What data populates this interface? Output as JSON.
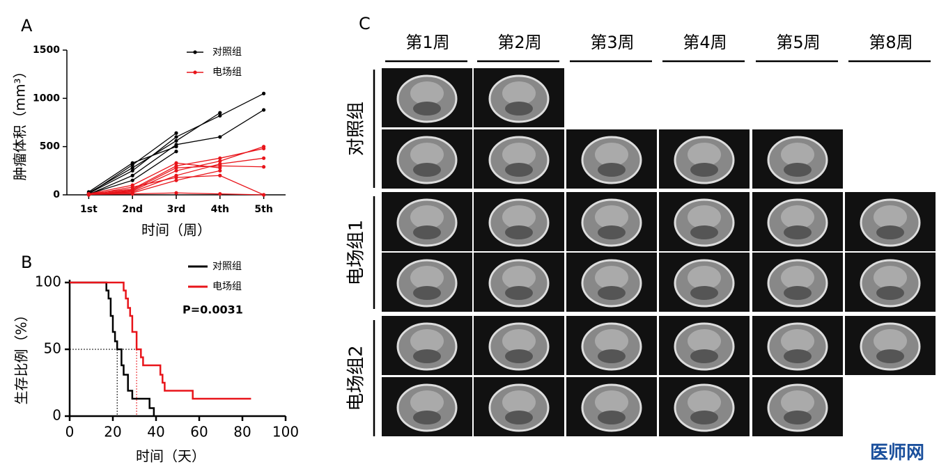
{
  "chart_data": [
    {
      "type": "line",
      "panel": "A",
      "y_label": "肿瘤体积（mm³）",
      "x_label": "时间（周）",
      "categories": [
        "1st",
        "2nd",
        "3rd",
        "4th",
        "5th"
      ],
      "ylim": [
        0,
        1500
      ],
      "yticks": [
        0,
        500,
        1000,
        1500
      ],
      "groups": [
        {
          "name": "对照组",
          "color": "#000000",
          "series": [
            [
              10,
              310,
              640,
              null,
              null
            ],
            [
              20,
              280,
              560,
              850,
              null
            ],
            [
              15,
              250,
              600,
              820,
              1050
            ],
            [
              5,
              200,
              520,
              600,
              880
            ],
            [
              30,
              330,
              500,
              null,
              null
            ],
            [
              10,
              150,
              450,
              null,
              null
            ]
          ]
        },
        {
          "name": "电场组",
          "color": "#e8141a",
          "series": [
            [
              5,
              40,
              250,
              350,
              500
            ],
            [
              10,
              60,
              300,
              380,
              480
            ],
            [
              5,
              30,
              200,
              320,
              380
            ],
            [
              0,
              50,
              280,
              300,
              290
            ],
            [
              10,
              20,
              150,
              250,
              null
            ],
            [
              0,
              80,
              180,
              200,
              0
            ],
            [
              5,
              10,
              20,
              10,
              0
            ],
            [
              10,
              100,
              330,
              280,
              null
            ]
          ]
        }
      ]
    },
    {
      "type": "survival",
      "panel": "B",
      "y_label": "生存比例（%）",
      "x_label": "时间（天）",
      "xlim": [
        0,
        100
      ],
      "xticks": [
        0,
        20,
        40,
        60,
        80,
        100
      ],
      "ylim": [
        0,
        100
      ],
      "yticks": [
        0,
        50,
        100
      ],
      "annotation": "P=0.0031",
      "series": [
        {
          "name": "对照组",
          "color": "#000000",
          "median": 22,
          "x": [
            0,
            17,
            18,
            19,
            20,
            21,
            22,
            24,
            25,
            27,
            29,
            37,
            39
          ],
          "values": [
            100,
            94,
            88,
            75,
            63,
            56,
            50,
            38,
            31,
            19,
            13,
            6,
            0
          ]
        },
        {
          "name": "电场组",
          "color": "#e8141a",
          "median": 31,
          "x": [
            0,
            25,
            26,
            27,
            28,
            29,
            31,
            33,
            34,
            42,
            43,
            44,
            57,
            84
          ],
          "values": [
            100,
            94,
            88,
            81,
            75,
            63,
            50,
            44,
            38,
            31,
            25,
            19,
            13,
            13
          ]
        }
      ]
    }
  ],
  "panel_c": {
    "label": "C",
    "columns": [
      "第1周",
      "第2周",
      "第3周",
      "第4周",
      "第5周",
      "第8周"
    ],
    "row_groups": [
      "对照组",
      "电场组1",
      "电场组2"
    ]
  },
  "watermark": "医师网"
}
